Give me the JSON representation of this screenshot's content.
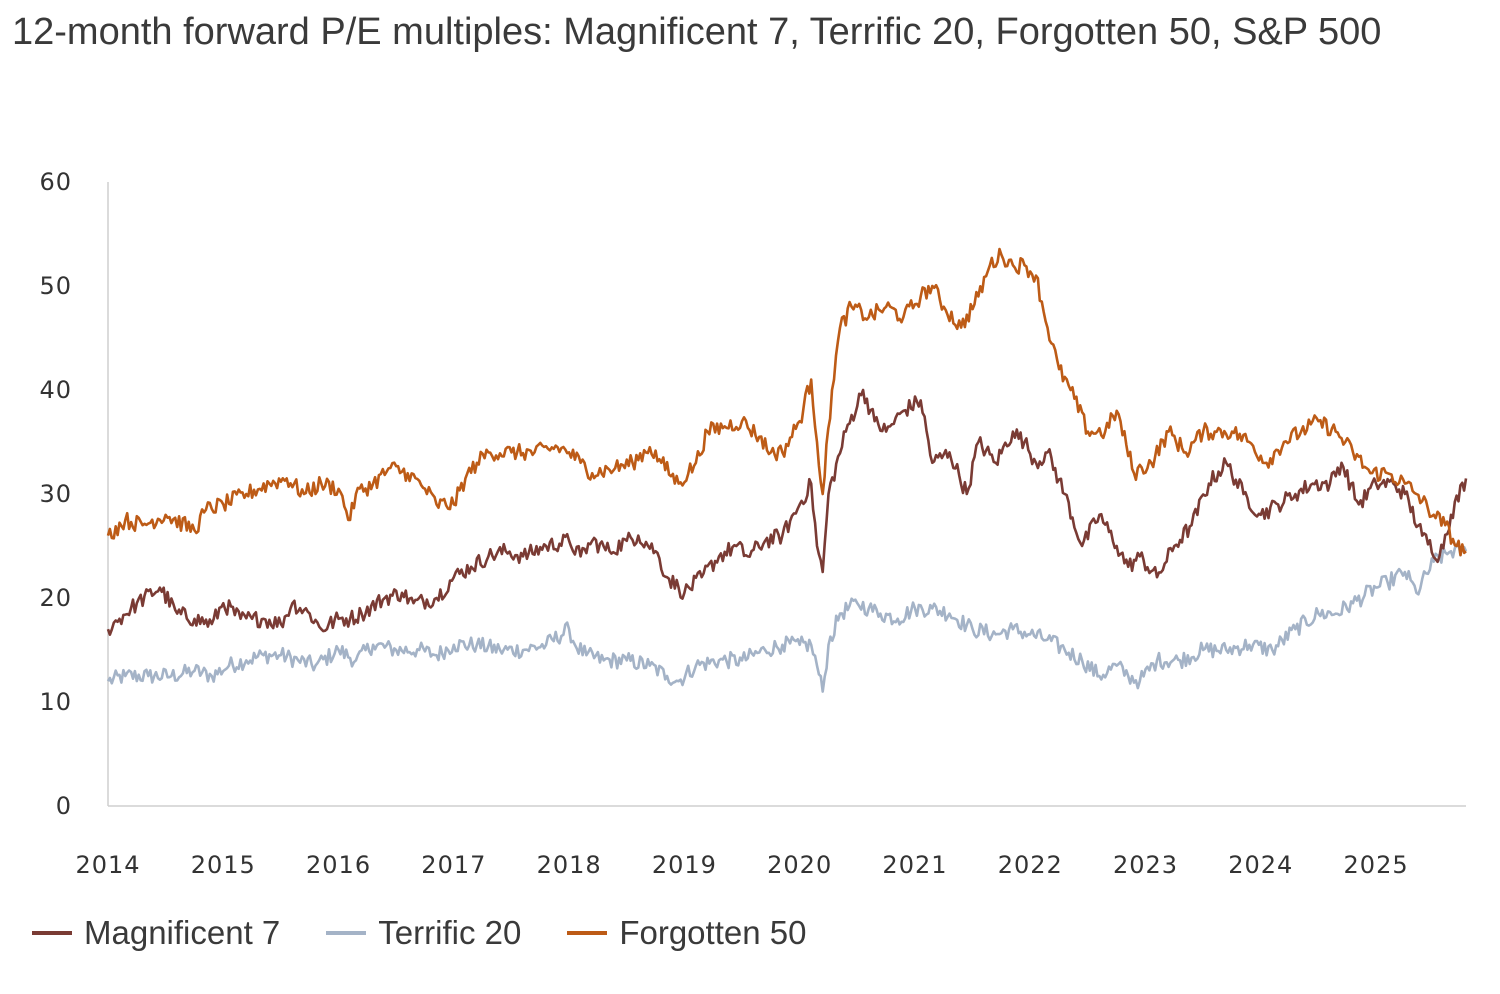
{
  "chart_data": {
    "type": "line",
    "title": "12-month forward P/E multiples: Magnificent 7, Terrific 20, Forgotten 50, S&P 500",
    "xlabel": "",
    "ylabel": "",
    "xlim": [
      2014,
      2025.78
    ],
    "ylim": [
      0,
      60
    ],
    "y_ticks": [
      0,
      10,
      20,
      30,
      40,
      50,
      60
    ],
    "x_ticks": [
      2014,
      2015,
      2016,
      2017,
      2018,
      2019,
      2020,
      2021,
      2022,
      2023,
      2024,
      2025
    ],
    "x_tick_labels": [
      "2014",
      "2015",
      "2016",
      "2017",
      "2018",
      "2019",
      "2020",
      "2021",
      "2022",
      "2023",
      "2024",
      "2025"
    ],
    "grid": false,
    "legend_position": "bottom-left",
    "series": [
      {
        "name": "Magnificent 7",
        "color": "#7a3b34",
        "x": [
          2014.0,
          2014.1,
          2014.25,
          2014.45,
          2014.6,
          2014.75,
          2014.9,
          2015.0,
          2015.15,
          2015.25,
          2015.35,
          2015.5,
          2015.6,
          2015.75,
          2015.85,
          2016.0,
          2016.1,
          2016.2,
          2016.4,
          2016.55,
          2016.65,
          2016.85,
          2017.0,
          2017.15,
          2017.3,
          2017.45,
          2017.6,
          2017.8,
          2018.0,
          2018.1,
          2018.2,
          2018.35,
          2018.5,
          2018.6,
          2018.75,
          2018.85,
          2018.95,
          2019.0,
          2019.15,
          2019.3,
          2019.45,
          2019.55,
          2019.7,
          2019.85,
          2020.0,
          2020.1,
          2020.15,
          2020.2,
          2020.25,
          2020.4,
          2020.55,
          2020.65,
          2020.75,
          2020.9,
          2021.05,
          2021.15,
          2021.3,
          2021.45,
          2021.55,
          2021.7,
          2021.85,
          2021.95,
          2022.05,
          2022.15,
          2022.3,
          2022.45,
          2022.6,
          2022.75,
          2022.85,
          2022.95,
          2023.1,
          2023.25,
          2023.4,
          2023.55,
          2023.7,
          2023.85,
          2024.0,
          2024.15,
          2024.3,
          2024.45,
          2024.6,
          2024.7,
          2024.85,
          2025.0,
          2025.15,
          2025.25,
          2025.4,
          2025.55,
          2025.65,
          2025.78
        ],
        "values": [
          17,
          18,
          19.5,
          21,
          18.5,
          18,
          17.5,
          19.5,
          18,
          18,
          18,
          17.5,
          19.5,
          18.5,
          17,
          18,
          18,
          18.5,
          20,
          20.5,
          19.5,
          20,
          22,
          23,
          24,
          24.5,
          24,
          25,
          25.5,
          24,
          25.5,
          24.5,
          25.5,
          26,
          24.5,
          22,
          21,
          20.5,
          22,
          24,
          25,
          24,
          25.5,
          26,
          29,
          31,
          25,
          22.5,
          30,
          36,
          40,
          37,
          36,
          38,
          39,
          33,
          34,
          30,
          35,
          33,
          36,
          35,
          33,
          34,
          30,
          25,
          28,
          25,
          23,
          24,
          22,
          25,
          27,
          31,
          33,
          30,
          28,
          29,
          30,
          31,
          31,
          33,
          29,
          31,
          31,
          30,
          26,
          24,
          28,
          31.5
        ]
      },
      {
        "name": "Terrific 20",
        "color": "#a4b3c7",
        "x": [
          2014.0,
          2014.15,
          2014.35,
          2014.55,
          2014.75,
          2014.9,
          2015.05,
          2015.2,
          2015.35,
          2015.5,
          2015.65,
          2015.8,
          2016.0,
          2016.15,
          2016.3,
          2016.5,
          2016.7,
          2016.85,
          2017.0,
          2017.2,
          2017.4,
          2017.6,
          2017.8,
          2018.0,
          2018.05,
          2018.15,
          2018.3,
          2018.5,
          2018.7,
          2018.85,
          2018.95,
          2019.1,
          2019.3,
          2019.5,
          2019.7,
          2019.85,
          2020.0,
          2020.1,
          2020.15,
          2020.2,
          2020.25,
          2020.35,
          2020.5,
          2020.6,
          2020.7,
          2020.85,
          2021.0,
          2021.15,
          2021.3,
          2021.5,
          2021.7,
          2021.85,
          2022.0,
          2022.15,
          2022.3,
          2022.45,
          2022.6,
          2022.75,
          2022.85,
          2022.95,
          2023.1,
          2023.3,
          2023.5,
          2023.7,
          2023.9,
          2024.1,
          2024.3,
          2024.5,
          2024.65,
          2024.8,
          2025.0,
          2025.1,
          2025.25,
          2025.35,
          2025.5,
          2025.65,
          2025.78
        ],
        "values": [
          12,
          12.5,
          12.5,
          12.5,
          13,
          12.5,
          13.5,
          14,
          14.5,
          14.5,
          14,
          13.5,
          15,
          14,
          15.5,
          15,
          15,
          14.5,
          15.5,
          15.5,
          15,
          15,
          15.5,
          17,
          15.5,
          14.5,
          14,
          14,
          13.5,
          12.5,
          12,
          13.5,
          14,
          14,
          15,
          15.5,
          15.5,
          15.5,
          13.5,
          11,
          15.5,
          18.5,
          19.5,
          19,
          18.5,
          18,
          19,
          19,
          18.5,
          17,
          16.5,
          17,
          16.5,
          16,
          15,
          14,
          12.5,
          13.5,
          12.5,
          12,
          14,
          14,
          15,
          15,
          15.5,
          15,
          17,
          18.5,
          18.5,
          19.5,
          21,
          21.5,
          22.5,
          20.5,
          23.5,
          24.5,
          24.5
        ]
      },
      {
        "name": "Forgotten 50",
        "color": "#bd5b16",
        "x": [
          2014.0,
          2014.15,
          2014.3,
          2014.5,
          2014.75,
          2014.85,
          2015.0,
          2015.2,
          2015.4,
          2015.55,
          2015.7,
          2015.85,
          2016.0,
          2016.1,
          2016.15,
          2016.3,
          2016.45,
          2016.6,
          2016.75,
          2016.85,
          2017.0,
          2017.1,
          2017.2,
          2017.3,
          2017.5,
          2017.7,
          2017.9,
          2018.0,
          2018.1,
          2018.2,
          2018.4,
          2018.55,
          2018.7,
          2018.8,
          2018.95,
          2019.1,
          2019.2,
          2019.35,
          2019.5,
          2019.65,
          2019.75,
          2019.85,
          2020.0,
          2020.1,
          2020.15,
          2020.2,
          2020.28,
          2020.35,
          2020.45,
          2020.6,
          2020.75,
          2020.9,
          2021.05,
          2021.15,
          2021.25,
          2021.4,
          2021.55,
          2021.65,
          2021.75,
          2021.85,
          2021.95,
          2022.05,
          2022.15,
          2022.25,
          2022.35,
          2022.5,
          2022.65,
          2022.75,
          2022.9,
          2023.05,
          2023.2,
          2023.35,
          2023.5,
          2023.6,
          2023.75,
          2023.9,
          2024.05,
          2024.2,
          2024.35,
          2024.5,
          2024.65,
          2024.8,
          2024.95,
          2025.1,
          2025.25,
          2025.35,
          2025.5,
          2025.6,
          2025.7,
          2025.78
        ],
        "values": [
          26,
          27.5,
          27,
          28,
          26.5,
          28.5,
          29,
          30,
          31,
          31.5,
          30,
          31,
          30.5,
          27.5,
          30,
          31,
          32.5,
          32,
          30.5,
          29,
          29,
          31.5,
          33,
          34,
          34,
          34,
          34.5,
          34,
          33,
          32,
          32.5,
          33,
          34.5,
          33,
          31,
          33,
          36,
          36.5,
          37,
          35.5,
          34,
          34,
          37,
          41,
          35,
          30,
          40,
          46,
          48,
          47,
          48,
          47,
          49,
          50,
          48,
          46,
          49,
          52,
          53,
          52,
          52,
          51,
          46,
          42,
          40,
          36,
          36,
          38,
          32,
          33,
          36,
          34,
          36,
          36,
          36,
          35,
          33,
          35,
          36,
          37,
          36,
          34,
          32,
          32,
          31,
          30,
          28,
          27,
          25,
          24.5
        ]
      }
    ]
  }
}
